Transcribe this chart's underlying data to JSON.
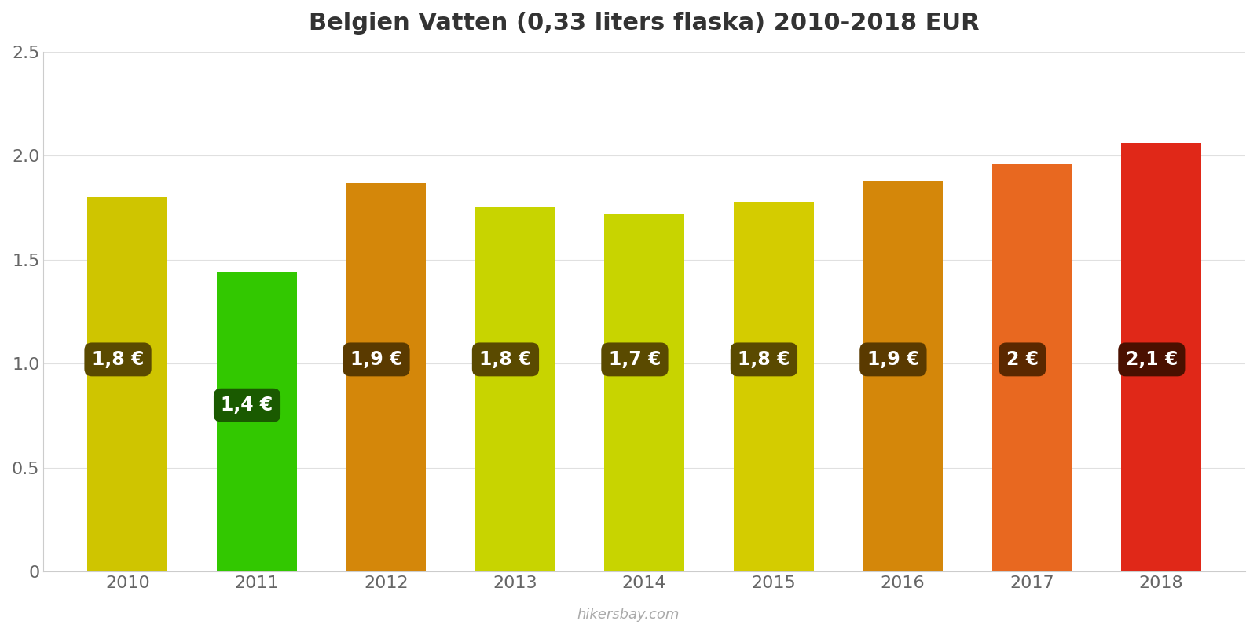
{
  "title": "Belgien Vatten (0,33 liters flaska) 2010-2018 EUR",
  "years": [
    2010,
    2011,
    2012,
    2013,
    2014,
    2015,
    2016,
    2017,
    2018
  ],
  "values": [
    1.8,
    1.44,
    1.87,
    1.75,
    1.72,
    1.78,
    1.88,
    1.96,
    2.06
  ],
  "labels": [
    "1,8 €",
    "1,4 €",
    "1,9 €",
    "1,8 €",
    "1,7 €",
    "1,8 €",
    "1,9 €",
    "2 €",
    "2,1 €"
  ],
  "bar_colors": [
    "#cfc500",
    "#32c800",
    "#d4870a",
    "#c8d400",
    "#c8d400",
    "#d4cc00",
    "#d4870a",
    "#e86820",
    "#e02818"
  ],
  "label_bg_colors": [
    "#5a4a00",
    "#1a5a00",
    "#5a3a00",
    "#5a4a00",
    "#5a4a00",
    "#5a4a00",
    "#5a3a00",
    "#5a2800",
    "#4a1000"
  ],
  "ylim": [
    0,
    2.5
  ],
  "yticks": [
    0,
    0.5,
    1.0,
    1.5,
    2.0,
    2.5
  ],
  "background_color": "#ffffff",
  "label_text_color": "#ffffff",
  "watermark": "hikersbay.com",
  "title_fontsize": 22,
  "tick_fontsize": 16,
  "label_fontsize": 17
}
